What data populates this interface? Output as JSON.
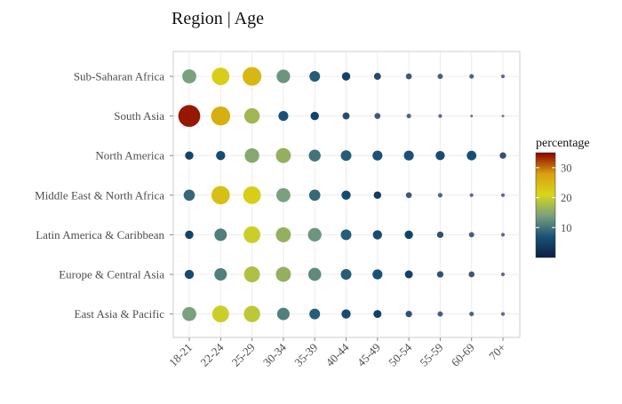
{
  "chart_data": {
    "type": "bubble-grid",
    "title": "Region | Age",
    "xlabel": "",
    "ylabel": "",
    "categories_x": [
      "18-21",
      "22-24",
      "25-29",
      "30-34",
      "35-39",
      "40-44",
      "45-49",
      "50-54",
      "55-59",
      "60-69",
      "70+"
    ],
    "categories_y": [
      "Sub-Saharan Africa",
      "South Asia",
      "North America",
      "Middle East & North Africa",
      "Latin America & Caribbean",
      "Europe & Central Asia",
      "East Asia & Pacific"
    ],
    "series": [
      {
        "region": "Sub-Saharan Africa",
        "values": [
          14,
          22,
          25,
          13,
          8,
          5,
          3.5,
          2.5,
          2,
          1.5,
          1
        ]
      },
      {
        "region": "South Asia",
        "values": [
          34,
          26,
          17,
          7,
          5,
          3.5,
          2.5,
          1.5,
          1,
          0.5,
          0.1
        ]
      },
      {
        "region": "North America",
        "values": [
          5,
          6,
          15,
          16,
          10,
          8,
          7,
          7,
          6,
          6.5,
          3
        ]
      },
      {
        "region": "Middle East & North Africa",
        "values": [
          9,
          24,
          22,
          14,
          9,
          6,
          4,
          2.5,
          1.5,
          1,
          1
        ]
      },
      {
        "region": "Latin America & Caribbean",
        "values": [
          5,
          11,
          20,
          16,
          13,
          8,
          6,
          5,
          3,
          2,
          1
        ]
      },
      {
        "region": "Europe & Central Asia",
        "values": [
          6,
          11,
          18,
          16,
          12,
          8,
          7,
          4.5,
          3,
          2.5,
          1
        ]
      },
      {
        "region": "East Asia & Pacific",
        "values": [
          14,
          20,
          19,
          11,
          8,
          6,
          4.5,
          3,
          2,
          1.5,
          1
        ]
      }
    ],
    "color_scale": {
      "label": "percentage",
      "ticks": [
        10,
        20,
        30
      ],
      "range": [
        0,
        35
      ],
      "stops": [
        "#0a1f44",
        "#1a5277",
        "#7aa07e",
        "#d8d61a",
        "#d8a010",
        "#8b0000"
      ]
    },
    "grid": true,
    "legend_position": "right"
  }
}
